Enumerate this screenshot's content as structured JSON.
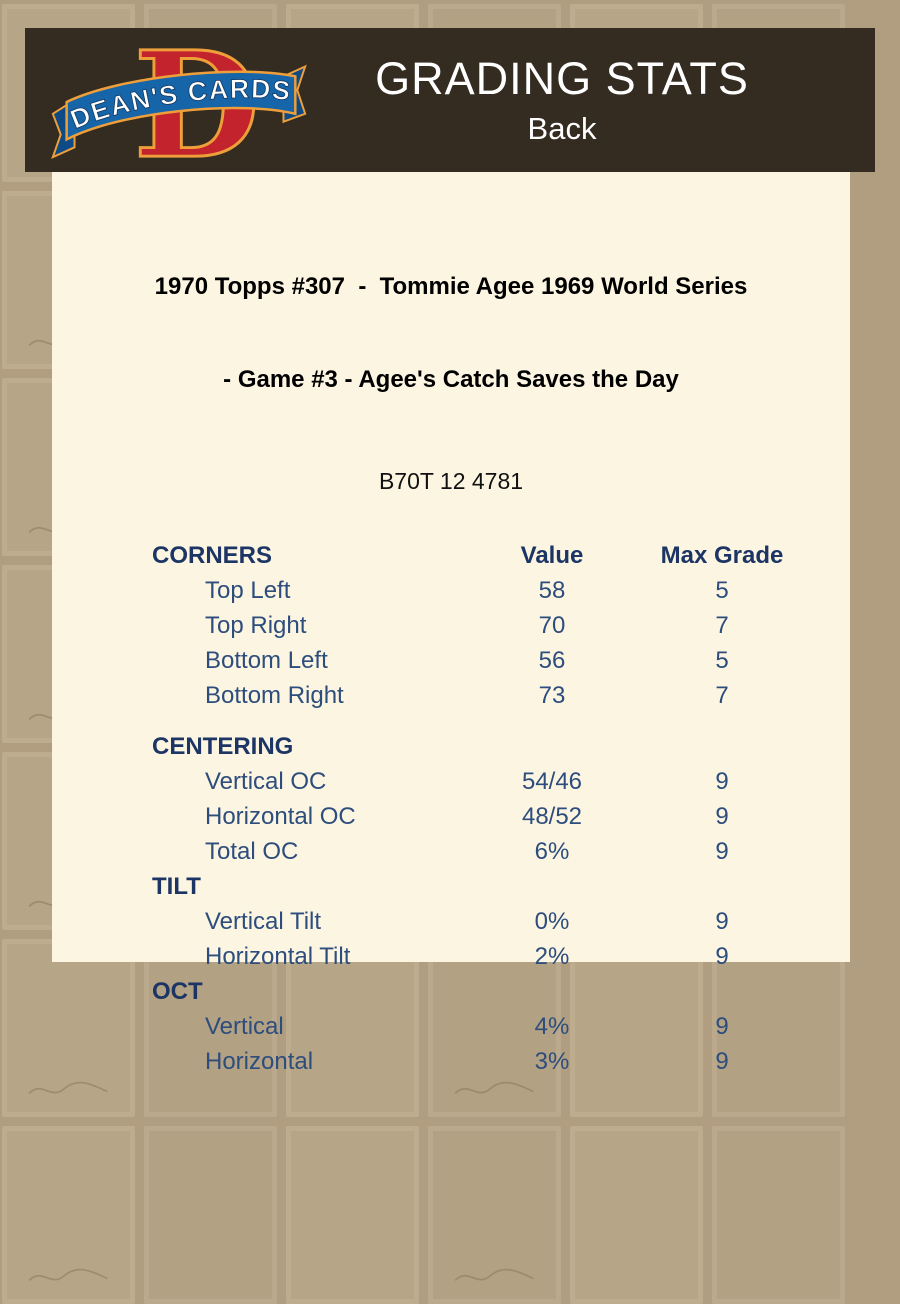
{
  "header": {
    "title": "GRADING STATS",
    "subtitle": "Back",
    "logo_letter": "D",
    "logo_text": "DEAN'S CARDS"
  },
  "card": {
    "title_line1": "1970 Topps #307  -  Tommie Agee 1969 World Series",
    "title_line2": "- Game #3 - Agee's Catch Saves the Day",
    "serial": "B70T 12 4781"
  },
  "table": {
    "columns": [
      "Value",
      "Max Grade"
    ],
    "sections": [
      {
        "name": "CORNERS",
        "rows": [
          {
            "label": "Top Left",
            "value": "58",
            "max_grade": "5"
          },
          {
            "label": "Top Right",
            "value": "70",
            "max_grade": "7"
          },
          {
            "label": "Bottom Left",
            "value": "56",
            "max_grade": "5"
          },
          {
            "label": "Bottom Right",
            "value": "73",
            "max_grade": "7"
          }
        ]
      },
      {
        "name": "CENTERING",
        "rows": [
          {
            "label": "Vertical OC",
            "value": "54/46",
            "max_grade": "9"
          },
          {
            "label": "Horizontal OC",
            "value": "48/52",
            "max_grade": "9"
          },
          {
            "label": "Total OC",
            "value": "6%",
            "max_grade": "9"
          }
        ]
      },
      {
        "name": "TILT",
        "rows": [
          {
            "label": "Vertical Tilt",
            "value": "0%",
            "max_grade": "9"
          },
          {
            "label": "Horizontal Tilt",
            "value": "2%",
            "max_grade": "9"
          }
        ]
      },
      {
        "name": "OCT",
        "rows": [
          {
            "label": "Vertical",
            "value": "4%",
            "max_grade": "9"
          },
          {
            "label": "Horizontal",
            "value": "3%",
            "max_grade": "9"
          }
        ]
      }
    ]
  },
  "colors": {
    "header_bar": "#342c20",
    "panel_bg": "#fcf5e2",
    "page_bg": "#b19e81",
    "section_navy": "#1c3564",
    "row_navy": "#2d4d7d",
    "logo_red": "#c2232c",
    "logo_blue": "#1565a8",
    "logo_gold": "#ef9f3a"
  }
}
